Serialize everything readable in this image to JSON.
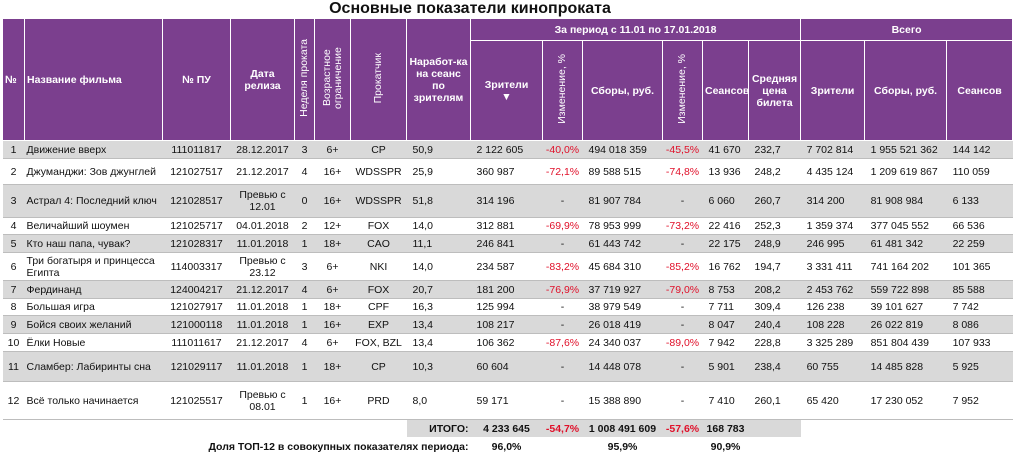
{
  "title": "Основные показатели кинопроката",
  "header": {
    "group_period": "За период с 11.01 по 17.01.2018",
    "group_total": "Всего",
    "sort_indicator": "▼",
    "columns": [
      "№",
      "Название фильма",
      "№ ПУ",
      "Дата релиза",
      "Неделя проката",
      "Возрастное ограничение",
      "Прокатчик",
      "Наработ-ка на сеанс по зрителям",
      "Зрители",
      "Изменение, %",
      "Сборы, руб.",
      "Изменение, %",
      "Сеансов",
      "Средняя цена билета",
      "Зрители",
      "Сборы, руб.",
      "Сеансов"
    ]
  },
  "rows": [
    [
      "1",
      "Движение вверх",
      "111011817",
      "28.12.2017",
      "3",
      "6+",
      "CP",
      "50,9",
      "2 122 605",
      "-40,0%",
      "494 018 359",
      "-45,5%",
      "41 670",
      "232,7",
      "7 702 814",
      "1 955 521 362",
      "144 142"
    ],
    [
      "2",
      "Джуманджи: Зов джунглей",
      "121027517",
      "21.12.2017",
      "4",
      "16+",
      "WDSSPR",
      "25,9",
      "360 987",
      "-72,1%",
      "89 588 515",
      "-74,8%",
      "13 936",
      "248,2",
      "4 435 124",
      "1 209 619 867",
      "110 059"
    ],
    [
      "3",
      "Астрал 4: Последний ключ",
      "121028517",
      "Превью с 12.01",
      "0",
      "16+",
      "WDSSPR",
      "51,8",
      "314 196",
      "-",
      "81 907 784",
      "-",
      "6 060",
      "260,7",
      "314 200",
      "81 908 984",
      "6 133"
    ],
    [
      "4",
      "Величайший шоумен",
      "121025717",
      "04.01.2018",
      "2",
      "12+",
      "FOX",
      "14,0",
      "312 881",
      "-69,9%",
      "78 953 999",
      "-73,2%",
      "22 416",
      "252,3",
      "1 359 374",
      "377 045 552",
      "66 536"
    ],
    [
      "5",
      "Кто наш папа, чувак?",
      "121028317",
      "11.01.2018",
      "1",
      "18+",
      "CAO",
      "11,1",
      "246 841",
      "-",
      "61 443 742",
      "-",
      "22 175",
      "248,9",
      "246 995",
      "61 481 342",
      "22 259"
    ],
    [
      "6",
      "Три богатыря и принцесса Египта",
      "114003317",
      "Превью с 23.12",
      "3",
      "6+",
      "NKI",
      "14,0",
      "234 587",
      "-83,2%",
      "45 684 310",
      "-85,2%",
      "16 762",
      "194,7",
      "3 331 411",
      "741 164 202",
      "101 365"
    ],
    [
      "7",
      "Фердинанд",
      "124004217",
      "21.12.2017",
      "4",
      "6+",
      "FOX",
      "20,7",
      "181 200",
      "-76,9%",
      "37 719 927",
      "-79,0%",
      "8 753",
      "208,2",
      "2 453 762",
      "559 722 898",
      "85 588"
    ],
    [
      "8",
      "Большая игра",
      "121027917",
      "11.01.2018",
      "1",
      "18+",
      "CPF",
      "16,3",
      "125 994",
      "-",
      "38 979 549",
      "-",
      "7 711",
      "309,4",
      "126 238",
      "39 101 627",
      "7 742"
    ],
    [
      "9",
      "Бойся своих желаний",
      "121000118",
      "11.01.2018",
      "1",
      "16+",
      "EXP",
      "13,4",
      "108 217",
      "-",
      "26 018 419",
      "-",
      "8 047",
      "240,4",
      "108 228",
      "26 022 819",
      "8 086"
    ],
    [
      "10",
      "Ёлки Новые",
      "111011617",
      "21.12.2017",
      "4",
      "6+",
      "FOX, BZL",
      "13,4",
      "106 362",
      "-87,6%",
      "24 340 037",
      "-89,0%",
      "7 942",
      "228,8",
      "3 325 289",
      "851 804 439",
      "107 933"
    ],
    [
      "11",
      "Сламбер: Лабиринты сна",
      "121029117",
      "11.01.2018",
      "1",
      "18+",
      "CP",
      "10,3",
      "60 604",
      "-",
      "14 448 078",
      "-",
      "5 901",
      "238,4",
      "60 755",
      "14 485 828",
      "5 925"
    ],
    [
      "12",
      "Всё только начинается",
      "121025517",
      "Превью с 08.01",
      "1",
      "16+",
      "PRD",
      "8,0",
      "59 171",
      "-",
      "15 388 890",
      "-",
      "7 410",
      "260,1",
      "65 420",
      "17 230 052",
      "7 952"
    ]
  ],
  "total": {
    "label": "ИТОГО:",
    "values": [
      "4 233 645",
      "-54,7%",
      "1 008 491 609",
      "-57,6%",
      "168 783"
    ]
  },
  "share": {
    "label": "Доля ТОП-12 в совокупных показателях периода:",
    "values": [
      "96,0%",
      "95,9%",
      "90,9%"
    ]
  }
}
